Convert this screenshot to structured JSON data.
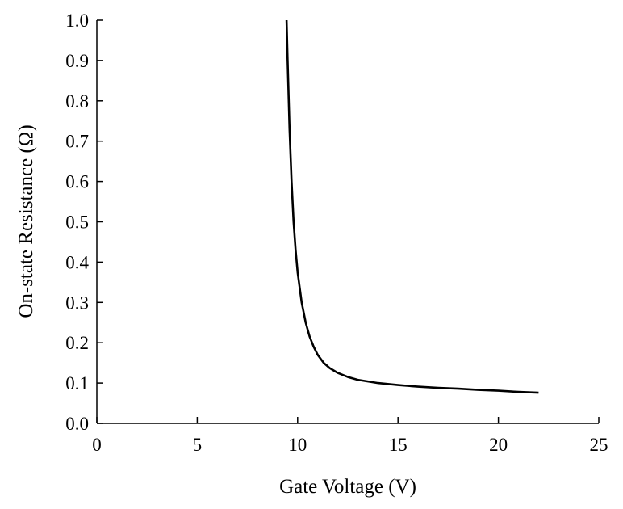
{
  "chart_data": {
    "type": "line",
    "title": "",
    "xlabel": "Gate Voltage (V)",
    "ylabel": "On-state Resistance (Ω)",
    "xlim": [
      0,
      25
    ],
    "ylim": [
      0.0,
      1.0
    ],
    "x_ticks": [
      "0",
      "5",
      "10",
      "15",
      "20",
      "25"
    ],
    "y_ticks": [
      "0.0",
      "0.1",
      "0.2",
      "0.3",
      "0.4",
      "0.5",
      "0.6",
      "0.7",
      "0.8",
      "0.9",
      "1.0"
    ],
    "grid": false,
    "legend": "none",
    "series": [
      {
        "color": "#000000",
        "x": [
          9.45,
          9.5,
          9.6,
          9.7,
          9.8,
          9.9,
          10.0,
          10.2,
          10.4,
          10.6,
          10.8,
          11.0,
          11.3,
          11.6,
          12.0,
          12.5,
          13.0,
          13.5,
          14.0,
          15.0,
          16.0,
          17.0,
          18.0,
          19.0,
          20.0,
          21.0,
          22.0
        ],
        "y": [
          1.0,
          0.9,
          0.73,
          0.6,
          0.5,
          0.43,
          0.375,
          0.3,
          0.25,
          0.215,
          0.19,
          0.17,
          0.15,
          0.137,
          0.125,
          0.115,
          0.108,
          0.104,
          0.1,
          0.095,
          0.091,
          0.088,
          0.086,
          0.083,
          0.081,
          0.078,
          0.076
        ]
      }
    ]
  }
}
